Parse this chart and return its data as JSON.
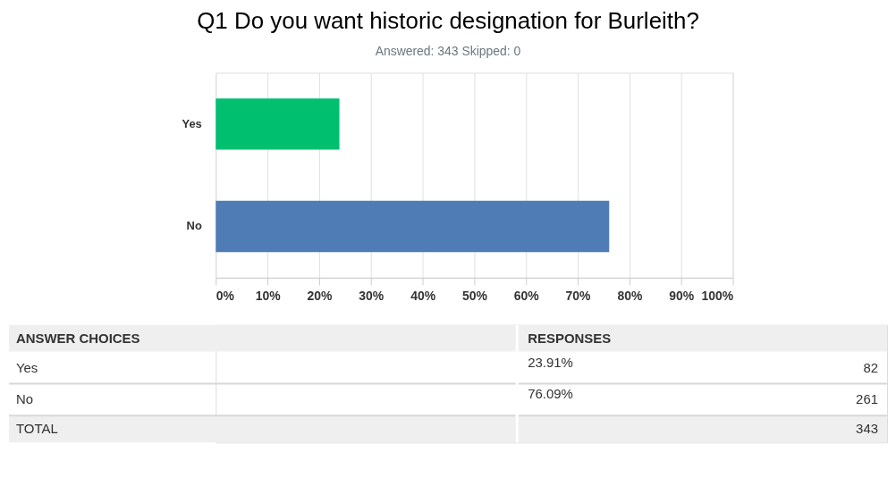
{
  "chart_data": {
    "type": "bar",
    "orientation": "horizontal",
    "title": "Q1 Do you want historic designation for Burleith?",
    "subtitle": "Answered: 343    Skipped: 0",
    "categories": [
      "Yes",
      "No"
    ],
    "values": [
      23.91,
      76.09
    ],
    "colors": [
      "#00bf6f",
      "#507cb6"
    ],
    "xlim": [
      0,
      100
    ],
    "xticks": [
      {
        "value": 0,
        "label": "0%"
      },
      {
        "value": 10,
        "label": "10%"
      },
      {
        "value": 20,
        "label": "20%"
      },
      {
        "value": 30,
        "label": "30%"
      },
      {
        "value": 40,
        "label": "40%"
      },
      {
        "value": 50,
        "label": "50%"
      },
      {
        "value": 60,
        "label": "60%"
      },
      {
        "value": 70,
        "label": "70%"
      },
      {
        "value": 80,
        "label": "80%"
      },
      {
        "value": 90,
        "label": "90%"
      },
      {
        "value": 100,
        "label": "100%"
      }
    ],
    "grid": "x",
    "annotations": [
      "ANSWER CHOICES",
      "RESPONSES",
      "23.91%",
      "76.09%",
      "82",
      "261",
      "TOTAL",
      "343"
    ]
  }
}
